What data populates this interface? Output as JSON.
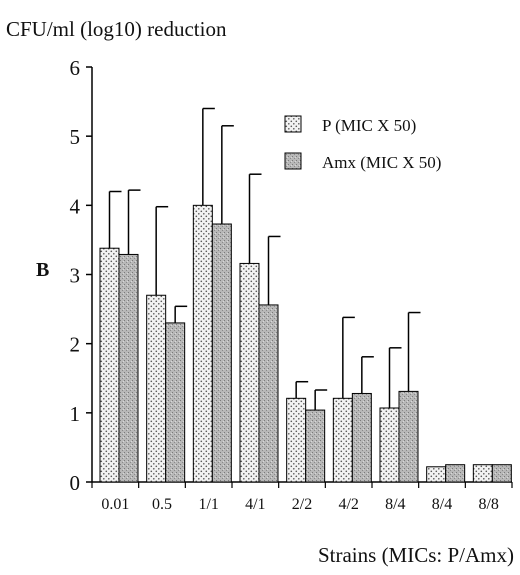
{
  "chart_data": {
    "type": "bar",
    "panel_label": "B",
    "ylabel": "CFU/ml (log10) reduction",
    "xlabel": "Strains (MICs: P/Amx)",
    "ylim": [
      0,
      6
    ],
    "yticks": [
      "0",
      "1",
      "2",
      "3",
      "4",
      "5",
      "6"
    ],
    "categories": [
      "0.01",
      "0.5",
      "1/1",
      "4/1",
      "2/2",
      "4/2",
      "8/4",
      "8/4",
      "8/8"
    ],
    "series": [
      {
        "name": "P (MIC X 50)",
        "values": [
          3.38,
          2.7,
          4.0,
          3.16,
          1.21,
          1.21,
          1.07,
          0.22,
          0.25
        ],
        "error_upper": [
          4.2,
          3.98,
          5.4,
          4.45,
          1.45,
          2.38,
          1.94,
          null,
          null
        ],
        "fill": "#f2f2f2",
        "pattern": "dots"
      },
      {
        "name": "Amx  (MIC X 50)",
        "values": [
          3.29,
          2.3,
          3.73,
          2.56,
          1.04,
          1.28,
          1.31,
          0.25,
          0.25
        ],
        "error_upper": [
          4.22,
          2.54,
          5.15,
          3.55,
          1.33,
          1.81,
          2.45,
          null,
          null
        ],
        "fill": "#b8b8b8",
        "pattern": "grain"
      }
    ],
    "grid": false,
    "legend_position": "top-right"
  }
}
